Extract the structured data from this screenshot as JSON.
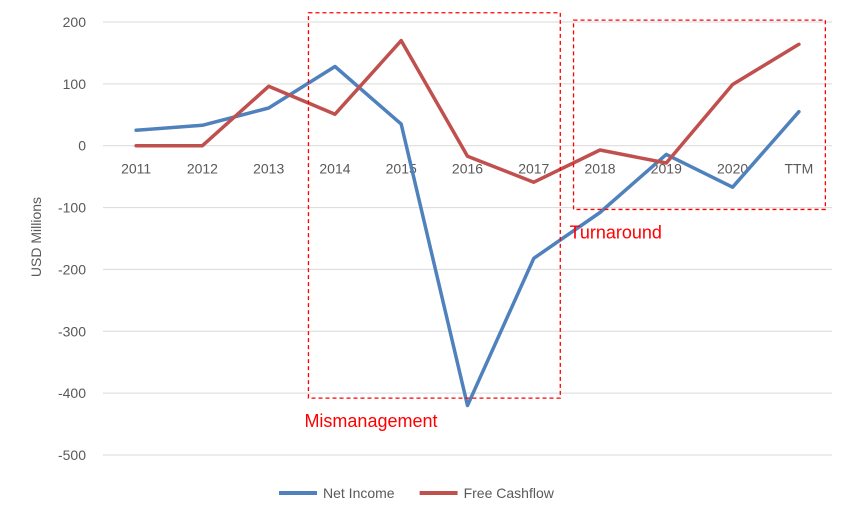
{
  "chart_data": {
    "type": "line",
    "categories": [
      "2011",
      "2012",
      "2013",
      "2014",
      "2015",
      "2016",
      "2017",
      "2018",
      "2019",
      "2020",
      "TTM"
    ],
    "series": [
      {
        "name": "Net Income",
        "color": "#4f81bd",
        "values": [
          25,
          33,
          61,
          128,
          35,
          -420,
          -182,
          -108,
          -14,
          -67,
          55
        ]
      },
      {
        "name": "Free Cashflow",
        "color": "#c0504d",
        "values": [
          0,
          0,
          96,
          51,
          170,
          -17,
          -59,
          -7,
          -28,
          99,
          164
        ]
      }
    ],
    "title": "",
    "xlabel": "",
    "ylabel": "USD Millions",
    "ylim": [
      -500,
      200
    ],
    "yticks": [
      200,
      100,
      0,
      -100,
      -200,
      -300,
      -400,
      -500
    ],
    "grid": true,
    "legend_position": "bottom",
    "annotations": [
      {
        "label": "Mismanagement",
        "color": "#ff0000",
        "x_from": "2014",
        "x_to": "2017",
        "y_from": -408,
        "y_to": 215
      },
      {
        "label": "Turnaround",
        "color": "#ff0000",
        "x_from": "2018",
        "x_to": "TTM",
        "y_from": -103,
        "y_to": 203
      }
    ]
  }
}
